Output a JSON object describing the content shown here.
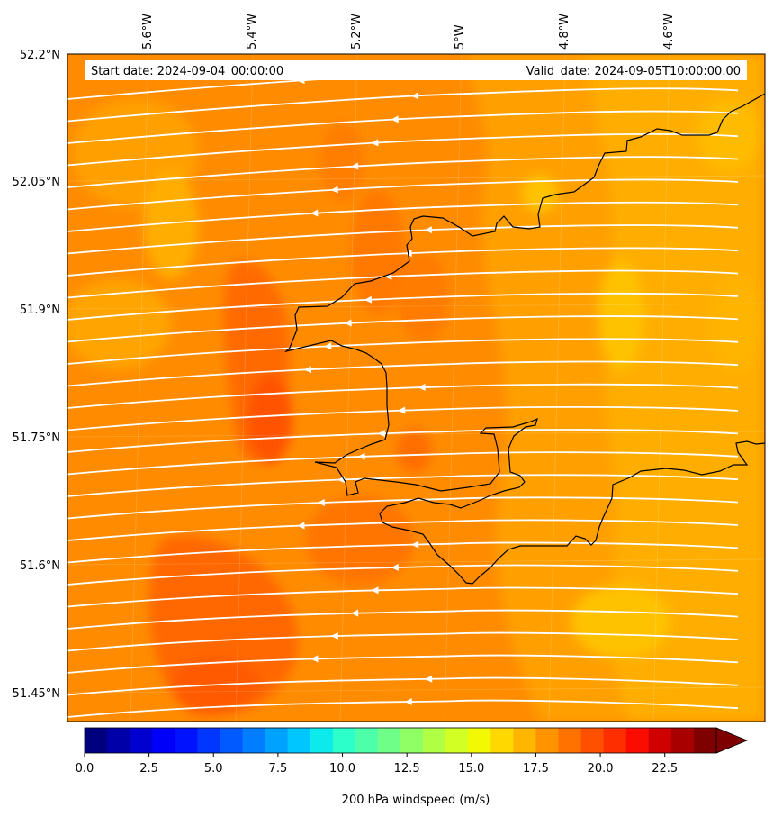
{
  "map": {
    "start_label": "Start date: 2024-09-04_00:00:00",
    "valid_label": "Valid_date: 2024-09-05T10:00:00.00",
    "lon_ticks": [
      "5.6°W",
      "5.4°W",
      "5.2°W",
      "5°W",
      "4.8°W",
      "4.6°W"
    ],
    "lat_ticks": [
      "52.2°N",
      "52.05°N",
      "51.9°N",
      "51.75°N",
      "51.6°N",
      "51.45°N"
    ],
    "field": "windspeed",
    "streamline_color": "#ffffff",
    "coastline_color": "#000000"
  },
  "colorbar": {
    "label": "200 hPa windspeed (m/s)",
    "min": 0,
    "max": 25,
    "ticks": [
      "0.0",
      "2.5",
      "5.0",
      "7.5",
      "10.0",
      "12.5",
      "15.0",
      "17.5",
      "20.0",
      "22.5"
    ],
    "extend": "max",
    "colors": [
      "#00007f",
      "#0000a8",
      "#0000d1",
      "#0000fa",
      "#0012ff",
      "#0036ff",
      "#005aff",
      "#007eff",
      "#00a2ff",
      "#00c6ff",
      "#0ceaeb",
      "#2dffca",
      "#4effa9",
      "#6fff88",
      "#90ff66",
      "#b1ff45",
      "#d2ff24",
      "#f3f902",
      "#ffd800",
      "#ffb600",
      "#ff9400",
      "#ff7200",
      "#ff5000",
      "#ff2e00",
      "#fa0c00",
      "#d10000",
      "#a80000",
      "#7f0000"
    ],
    "over_color": "#7f0000"
  },
  "speed_field_colors": {
    "low": "#ffb600",
    "mid": "#ff9400",
    "high": "#ff7200",
    "peak": "#ff5000",
    "yellow": "#ffc700"
  }
}
